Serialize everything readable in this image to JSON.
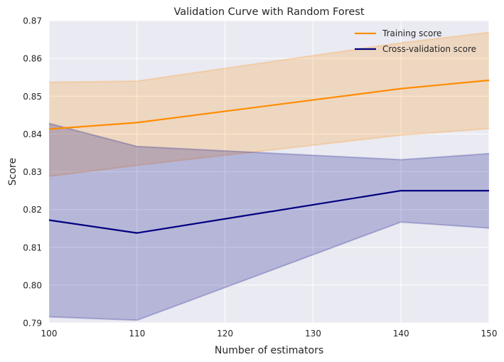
{
  "chart_data": {
    "type": "line",
    "title": "Validation Curve with Random Forest",
    "xlabel": "Number of estimators",
    "ylabel": "Score",
    "xlim": [
      100,
      150
    ],
    "ylim": [
      0.79,
      0.87
    ],
    "x": [
      100,
      110,
      140,
      150
    ],
    "x_ticks": [
      "100",
      "110",
      "120",
      "130",
      "140",
      "150"
    ],
    "y_ticks": [
      "0.79",
      "0.80",
      "0.81",
      "0.82",
      "0.83",
      "0.84",
      "0.85",
      "0.86",
      "0.87"
    ],
    "grid": true,
    "legend_position": "top-right",
    "series": [
      {
        "name": "Training score",
        "color": "#ff8c00",
        "values": [
          0.8413,
          0.843,
          0.852,
          0.8542
        ],
        "band_upper": [
          0.8537,
          0.854,
          0.8641,
          0.8669
        ],
        "band_lower": [
          0.8288,
          0.8317,
          0.8397,
          0.8414
        ]
      },
      {
        "name": "Cross-validation score",
        "color": "#000080",
        "values": [
          0.8172,
          0.8138,
          0.825,
          0.825
        ],
        "band_upper": [
          0.8428,
          0.8367,
          0.8332,
          0.8348
        ],
        "band_lower": [
          0.7916,
          0.7907,
          0.8167,
          0.8151
        ]
      }
    ]
  },
  "colors": {
    "plot_background": "#eaeaf2",
    "grid": "#ffffff"
  }
}
